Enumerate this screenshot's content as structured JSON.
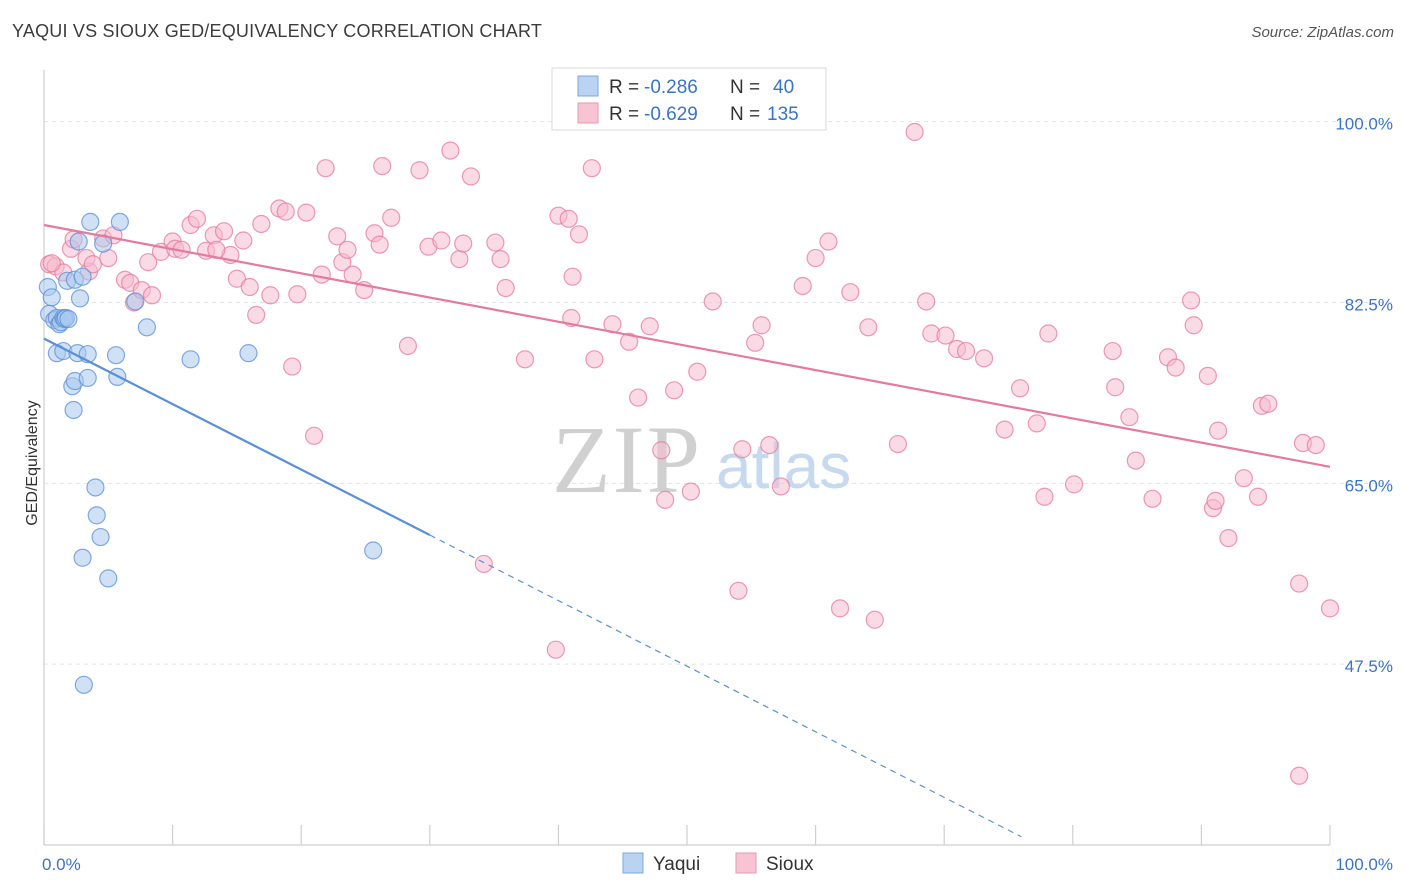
{
  "title": "YAQUI VS SIOUX GED/EQUIVALENCY CORRELATION CHART",
  "source": "Source: ZipAtlas.com",
  "chart_data": {
    "type": "scatter",
    "ylabel": "GED/Equivalency",
    "xlim": [
      0,
      100
    ],
    "ylim": [
      30,
      105
    ],
    "x_ticks": [
      {
        "value": 0,
        "label": "0.0%"
      },
      {
        "value": 100,
        "label": "100.0%"
      }
    ],
    "y_ticks": [
      {
        "value": 100,
        "label": "100.0%"
      },
      {
        "value": 82.5,
        "label": "82.5%"
      },
      {
        "value": 65,
        "label": "65.0%"
      },
      {
        "value": 47.5,
        "label": "47.5%"
      }
    ],
    "legend": {
      "position": "top-center",
      "entries": [
        {
          "series": "Yaqui",
          "r_label": "R =",
          "r_value": "-0.286",
          "n_label": "N =",
          "n_value": "40"
        },
        {
          "series": "Sioux",
          "r_label": "R =",
          "r_value": "-0.629",
          "n_label": "N =",
          "n_value": "135"
        }
      ]
    },
    "series": [
      {
        "name": "Yaqui",
        "color": "#5b8fd6",
        "fill": "#a9c8ef",
        "trend": {
          "x0": 0,
          "y0": 79.0,
          "x1": 30,
          "y1": 60.0,
          "dash_to_x": 76,
          "dash_to_y": 30.8
        },
        "points": [
          [
            0.3,
            84.0
          ],
          [
            0.6,
            83.0
          ],
          [
            0.4,
            81.4
          ],
          [
            0.8,
            80.8
          ],
          [
            1.0,
            81.0
          ],
          [
            1.2,
            80.4
          ],
          [
            1.3,
            80.6
          ],
          [
            1.5,
            81.0
          ],
          [
            1.6,
            80.9
          ],
          [
            1.7,
            81.0
          ],
          [
            1.9,
            80.9
          ],
          [
            1.0,
            77.6
          ],
          [
            1.5,
            77.8
          ],
          [
            2.6,
            77.6
          ],
          [
            3.4,
            77.5
          ],
          [
            5.6,
            77.4
          ],
          [
            1.8,
            84.6
          ],
          [
            2.4,
            84.7
          ],
          [
            3.0,
            85.0
          ],
          [
            2.7,
            88.4
          ],
          [
            3.6,
            90.3
          ],
          [
            4.6,
            88.2
          ],
          [
            5.9,
            90.3
          ],
          [
            2.8,
            82.9
          ],
          [
            7.1,
            82.6
          ],
          [
            8.0,
            80.1
          ],
          [
            11.4,
            77.0
          ],
          [
            15.9,
            77.6
          ],
          [
            2.2,
            74.4
          ],
          [
            2.4,
            74.9
          ],
          [
            3.4,
            75.2
          ],
          [
            5.7,
            75.3
          ],
          [
            2.3,
            72.1
          ],
          [
            4.0,
            64.6
          ],
          [
            4.1,
            61.9
          ],
          [
            4.4,
            59.8
          ],
          [
            3.0,
            57.8
          ],
          [
            5.0,
            55.8
          ],
          [
            25.6,
            58.5
          ],
          [
            3.1,
            45.5
          ]
        ]
      },
      {
        "name": "Sioux",
        "color": "#e47a9c",
        "fill": "#f6bccd",
        "trend": {
          "x0": 0,
          "y0": 90.0,
          "x1": 100,
          "y1": 66.6
        },
        "points": [
          [
            0.4,
            86.2
          ],
          [
            0.9,
            86.0
          ],
          [
            1.5,
            85.4
          ],
          [
            2.1,
            87.7
          ],
          [
            2.3,
            88.6
          ],
          [
            3.5,
            85.5
          ],
          [
            3.3,
            86.8
          ],
          [
            3.8,
            86.2
          ],
          [
            4.6,
            88.7
          ],
          [
            5.4,
            89.0
          ],
          [
            5.0,
            86.8
          ],
          [
            6.3,
            84.7
          ],
          [
            6.7,
            84.4
          ],
          [
            7.0,
            82.5
          ],
          [
            7.6,
            83.7
          ],
          [
            8.1,
            86.4
          ],
          [
            8.4,
            83.2
          ],
          [
            9.1,
            87.4
          ],
          [
            10.0,
            88.4
          ],
          [
            10.2,
            87.7
          ],
          [
            10.7,
            87.6
          ],
          [
            11.4,
            90.0
          ],
          [
            11.9,
            90.6
          ],
          [
            12.6,
            87.5
          ],
          [
            13.2,
            89.0
          ],
          [
            14.0,
            89.4
          ],
          [
            14.5,
            87.1
          ],
          [
            15.0,
            84.8
          ],
          [
            15.5,
            88.5
          ],
          [
            16.0,
            84.0
          ],
          [
            16.5,
            81.3
          ],
          [
            16.9,
            90.1
          ],
          [
            17.6,
            83.2
          ],
          [
            18.3,
            91.6
          ],
          [
            18.8,
            91.3
          ],
          [
            19.3,
            76.3
          ],
          [
            19.7,
            83.3
          ],
          [
            20.4,
            91.2
          ],
          [
            21.0,
            69.6
          ],
          [
            21.6,
            85.2
          ],
          [
            21.9,
            95.5
          ],
          [
            22.8,
            88.9
          ],
          [
            23.2,
            86.4
          ],
          [
            23.6,
            87.6
          ],
          [
            24.0,
            85.2
          ],
          [
            24.9,
            83.7
          ],
          [
            25.7,
            89.2
          ],
          [
            26.1,
            88.1
          ],
          [
            26.3,
            95.7
          ],
          [
            27.0,
            90.7
          ],
          [
            28.3,
            78.3
          ],
          [
            29.2,
            95.3
          ],
          [
            29.9,
            87.9
          ],
          [
            30.9,
            88.5
          ],
          [
            31.6,
            97.2
          ],
          [
            32.3,
            86.7
          ],
          [
            32.6,
            88.2
          ],
          [
            33.2,
            94.7
          ],
          [
            34.2,
            57.2
          ],
          [
            35.1,
            88.3
          ],
          [
            35.5,
            86.7
          ],
          [
            35.9,
            83.9
          ],
          [
            37.4,
            77.0
          ],
          [
            40.0,
            90.9
          ],
          [
            40.8,
            90.6
          ],
          [
            41.1,
            85.0
          ],
          [
            41.6,
            89.1
          ],
          [
            41.0,
            81.0
          ],
          [
            42.6,
            95.5
          ],
          [
            42.8,
            77.0
          ],
          [
            44.2,
            80.4
          ],
          [
            45.5,
            78.7
          ],
          [
            46.2,
            73.3
          ],
          [
            47.1,
            80.2
          ],
          [
            48.0,
            68.2
          ],
          [
            48.3,
            63.4
          ],
          [
            49.0,
            74.0
          ],
          [
            50.3,
            64.2
          ],
          [
            50.8,
            75.8
          ],
          [
            52.0,
            82.6
          ],
          [
            54.0,
            54.6
          ],
          [
            54.3,
            68.3
          ],
          [
            55.3,
            78.6
          ],
          [
            55.8,
            80.3
          ],
          [
            56.4,
            68.7
          ],
          [
            57.3,
            64.7
          ],
          [
            59.0,
            84.1
          ],
          [
            60.0,
            86.8
          ],
          [
            61.0,
            88.4
          ],
          [
            61.9,
            52.9
          ],
          [
            62.7,
            83.5
          ],
          [
            64.1,
            80.1
          ],
          [
            64.6,
            51.8
          ],
          [
            66.4,
            68.8
          ],
          [
            67.7,
            99.0
          ],
          [
            68.6,
            82.6
          ],
          [
            69.0,
            79.5
          ],
          [
            70.1,
            79.3
          ],
          [
            71.0,
            78.0
          ],
          [
            71.7,
            77.8
          ],
          [
            73.1,
            77.1
          ],
          [
            74.7,
            70.2
          ],
          [
            75.9,
            74.2
          ],
          [
            77.2,
            70.8
          ],
          [
            77.8,
            63.7
          ],
          [
            78.1,
            79.5
          ],
          [
            80.1,
            64.9
          ],
          [
            83.1,
            77.8
          ],
          [
            83.3,
            74.3
          ],
          [
            84.4,
            71.4
          ],
          [
            84.9,
            67.2
          ],
          [
            86.2,
            63.5
          ],
          [
            87.4,
            77.2
          ],
          [
            88.0,
            76.2
          ],
          [
            89.2,
            82.7
          ],
          [
            89.4,
            80.3
          ],
          [
            90.5,
            75.4
          ],
          [
            90.9,
            62.6
          ],
          [
            91.1,
            63.3
          ],
          [
            91.3,
            70.1
          ],
          [
            92.1,
            59.7
          ],
          [
            93.3,
            65.5
          ],
          [
            94.4,
            63.7
          ],
          [
            94.7,
            72.5
          ],
          [
            95.2,
            72.7
          ],
          [
            97.6,
            55.3
          ],
          [
            97.9,
            68.9
          ],
          [
            98.9,
            68.7
          ],
          [
            97.6,
            36.7
          ],
          [
            100,
            52.9
          ],
          [
            39.8,
            48.9
          ],
          [
            13.4,
            87.6
          ],
          [
            0.6,
            86.3
          ]
        ]
      }
    ]
  }
}
